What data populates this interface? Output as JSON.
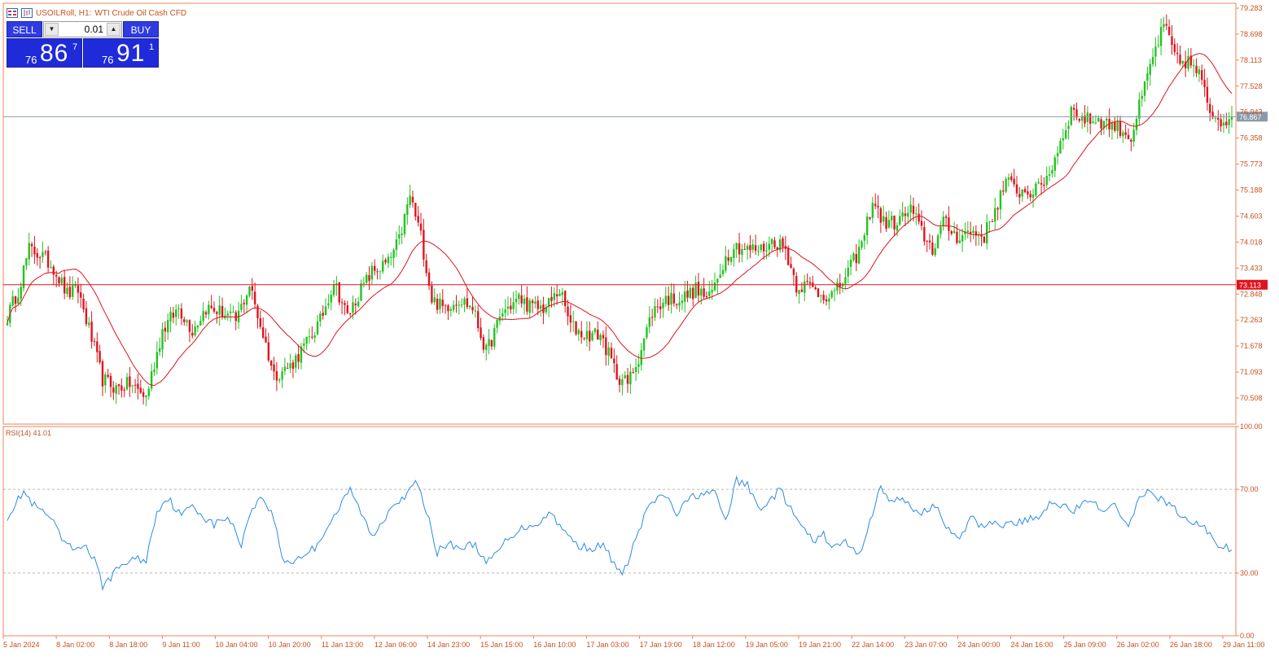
{
  "header": {
    "symbol_timeframe": "USOILRoll, H1:",
    "description": "WTI Crude Oil Cash CFD"
  },
  "trade_panel": {
    "sell_label": "SELL",
    "buy_label": "BUY",
    "lot_value": "0.01",
    "sell_price": {
      "small": "76",
      "big": "86",
      "sup": "7"
    },
    "buy_price": {
      "small": "76",
      "big": "91",
      "sup": "1"
    }
  },
  "colors": {
    "bull": "#22c322",
    "bear": "#e0141e",
    "ma": "#e0141e",
    "rsi_line": "#2b8be6",
    "axis_text": "#c8501c",
    "frame": "#e8875a",
    "bid_line": "#8a9aaa",
    "hline": "#e0141e"
  },
  "chart_data": [
    {
      "type": "candlestick",
      "title": "USOILRoll, H1: WTI Crude Oil Cash CFD",
      "ylim": [
        70.0,
        79.4
      ],
      "y_ticks": [
        "79.283",
        "78.698",
        "78.113",
        "77.528",
        "76.943",
        "76.358",
        "75.773",
        "75.188",
        "74.603",
        "74.018",
        "73.433",
        "72.848",
        "72.263",
        "71.678",
        "71.093",
        "70.508"
      ],
      "x_ticks": [
        "5 Jan 2024",
        "8 Jan 02:00",
        "8 Jan 18:00",
        "9 Jan 11:00",
        "10 Jan 04:00",
        "10 Jan 20:00",
        "11 Jan 13:00",
        "12 Jan 06:00",
        "14 Jan 23:00",
        "15 Jan 15:00",
        "16 Jan 10:00",
        "17 Jan 03:00",
        "17 Jan 19:00",
        "18 Jan 12:00",
        "19 Jan 05:00",
        "19 Jan 21:00",
        "22 Jan 14:00",
        "23 Jan 07:00",
        "24 Jan 00:00",
        "24 Jan 16:00",
        "25 Jan 09:00",
        "26 Jan 02:00",
        "26 Jan 18:00",
        "29 Jan 11:00"
      ],
      "close_anchors": [
        [
          0,
          72.4
        ],
        [
          4,
          73.0
        ],
        [
          8,
          73.9
        ],
        [
          12,
          73.8
        ],
        [
          17,
          73.5
        ],
        [
          22,
          72.9
        ],
        [
          26,
          73.0
        ],
        [
          31,
          71.9
        ],
        [
          35,
          71.0
        ],
        [
          40,
          70.8
        ],
        [
          45,
          70.9
        ],
        [
          51,
          70.6
        ],
        [
          57,
          72.1
        ],
        [
          63,
          72.6
        ],
        [
          68,
          72.1
        ],
        [
          73,
          72.6
        ],
        [
          79,
          72.5
        ],
        [
          84,
          72.3
        ],
        [
          89,
          73.1
        ],
        [
          94,
          72.0
        ],
        [
          98,
          71.1
        ],
        [
          104,
          71.3
        ],
        [
          110,
          71.8
        ],
        [
          115,
          72.3
        ],
        [
          120,
          73.2
        ],
        [
          125,
          72.4
        ],
        [
          129,
          72.9
        ],
        [
          134,
          73.4
        ],
        [
          140,
          73.6
        ],
        [
          144,
          74.1
        ],
        [
          148,
          75.1
        ],
        [
          152,
          74.2
        ],
        [
          156,
          72.8
        ],
        [
          160,
          72.6
        ],
        [
          166,
          72.8
        ],
        [
          171,
          72.6
        ],
        [
          176,
          71.6
        ],
        [
          182,
          72.5
        ],
        [
          188,
          72.8
        ],
        [
          193,
          72.6
        ],
        [
          198,
          72.6
        ],
        [
          203,
          73.0
        ],
        [
          207,
          72.2
        ],
        [
          212,
          72.0
        ],
        [
          218,
          72.0
        ],
        [
          224,
          71.1
        ],
        [
          228,
          70.9
        ],
        [
          232,
          71.5
        ],
        [
          237,
          72.5
        ],
        [
          242,
          72.8
        ],
        [
          248,
          72.8
        ],
        [
          253,
          73.0
        ],
        [
          258,
          72.8
        ],
        [
          263,
          73.6
        ],
        [
          267,
          74.0
        ],
        [
          272,
          73.9
        ],
        [
          277,
          73.9
        ],
        [
          282,
          74.1
        ],
        [
          286,
          73.9
        ],
        [
          290,
          73.1
        ],
        [
          294,
          73.1
        ],
        [
          299,
          72.9
        ],
        [
          304,
          72.9
        ],
        [
          309,
          73.4
        ],
        [
          314,
          74.0
        ],
        [
          318,
          75.0
        ],
        [
          322,
          74.5
        ],
        [
          327,
          74.5
        ],
        [
          332,
          74.8
        ],
        [
          336,
          74.3
        ],
        [
          340,
          73.9
        ],
        [
          344,
          74.5
        ],
        [
          349,
          74.2
        ],
        [
          354,
          74.3
        ],
        [
          359,
          74.2
        ],
        [
          363,
          74.8
        ],
        [
          367,
          75.4
        ],
        [
          372,
          75.2
        ],
        [
          378,
          75.2
        ],
        [
          383,
          75.6
        ],
        [
          387,
          76.3
        ],
        [
          391,
          77.0
        ],
        [
          396,
          76.8
        ],
        [
          401,
          76.8
        ],
        [
          405,
          76.7
        ],
        [
          409,
          76.6
        ],
        [
          413,
          76.4
        ],
        [
          417,
          77.3
        ],
        [
          421,
          78.2
        ],
        [
          425,
          78.9
        ],
        [
          430,
          78.1
        ],
        [
          434,
          78.1
        ],
        [
          438,
          77.8
        ],
        [
          442,
          77.0
        ],
        [
          446,
          76.8
        ],
        [
          450,
          76.87
        ]
      ],
      "moving_average": {
        "name": "MA",
        "type": "line"
      },
      "horizontal_lines": [
        {
          "label": "76.867",
          "value": 76.867,
          "kind": "bid"
        },
        {
          "label": "73.113",
          "value": 73.113,
          "kind": "level"
        }
      ],
      "grid": false
    },
    {
      "type": "line",
      "title": "RSI(14) 41.01",
      "label": "RSI(14) 41.01",
      "ylim": [
        0,
        100
      ],
      "y_ticks": [
        "100.00",
        "70.00",
        "30.00",
        "0.00"
      ],
      "levels": [
        70,
        30
      ],
      "current": 41.01,
      "anchors": [
        [
          0,
          57
        ],
        [
          3,
          63
        ],
        [
          6,
          69
        ],
        [
          9,
          63
        ],
        [
          12,
          60
        ],
        [
          16,
          56
        ],
        [
          20,
          46
        ],
        [
          24,
          41
        ],
        [
          28,
          44
        ],
        [
          32,
          36
        ],
        [
          35,
          24
        ],
        [
          38,
          28
        ],
        [
          42,
          34
        ],
        [
          47,
          37
        ],
        [
          51,
          36
        ],
        [
          55,
          60
        ],
        [
          59,
          66
        ],
        [
          64,
          57
        ],
        [
          68,
          63
        ],
        [
          72,
          57
        ],
        [
          76,
          53
        ],
        [
          81,
          57
        ],
        [
          86,
          44
        ],
        [
          90,
          62
        ],
        [
          94,
          66
        ],
        [
          98,
          56
        ],
        [
          101,
          37
        ],
        [
          104,
          35
        ],
        [
          108,
          38
        ],
        [
          113,
          42
        ],
        [
          118,
          53
        ],
        [
          122,
          61
        ],
        [
          126,
          70
        ],
        [
          130,
          59
        ],
        [
          134,
          47
        ],
        [
          138,
          55
        ],
        [
          142,
          64
        ],
        [
          147,
          67
        ],
        [
          150,
          74
        ],
        [
          154,
          60
        ],
        [
          158,
          40
        ],
        [
          162,
          44
        ],
        [
          167,
          42
        ],
        [
          172,
          44
        ],
        [
          176,
          34
        ],
        [
          180,
          40
        ],
        [
          185,
          48
        ],
        [
          190,
          52
        ],
        [
          195,
          54
        ],
        [
          200,
          59
        ],
        [
          205,
          49
        ],
        [
          210,
          43
        ],
        [
          215,
          42
        ],
        [
          219,
          43
        ],
        [
          222,
          37
        ],
        [
          226,
          28
        ],
        [
          230,
          43
        ],
        [
          236,
          63
        ],
        [
          242,
          67
        ],
        [
          246,
          58
        ],
        [
          251,
          66
        ],
        [
          255,
          68
        ],
        [
          260,
          68
        ],
        [
          264,
          55
        ],
        [
          268,
          74
        ],
        [
          272,
          72
        ],
        [
          276,
          61
        ],
        [
          280,
          64
        ],
        [
          284,
          70
        ],
        [
          288,
          60
        ],
        [
          292,
          52
        ],
        [
          296,
          45
        ],
        [
          300,
          48
        ],
        [
          304,
          42
        ],
        [
          308,
          45
        ],
        [
          313,
          38
        ],
        [
          317,
          55
        ],
        [
          321,
          71
        ],
        [
          325,
          64
        ],
        [
          330,
          65
        ],
        [
          334,
          59
        ],
        [
          338,
          60
        ],
        [
          342,
          62
        ],
        [
          346,
          50
        ],
        [
          350,
          45
        ],
        [
          354,
          57
        ],
        [
          358,
          52
        ],
        [
          362,
          55
        ],
        [
          366,
          53
        ],
        [
          370,
          54
        ],
        [
          375,
          55
        ],
        [
          380,
          58
        ],
        [
          384,
          65
        ],
        [
          388,
          62
        ],
        [
          392,
          60
        ],
        [
          396,
          63
        ],
        [
          400,
          63
        ],
        [
          404,
          60
        ],
        [
          408,
          62
        ],
        [
          412,
          51
        ],
        [
          416,
          65
        ],
        [
          420,
          70
        ],
        [
          424,
          65
        ],
        [
          428,
          62
        ],
        [
          432,
          56
        ],
        [
          436,
          54
        ],
        [
          440,
          52
        ],
        [
          444,
          44
        ],
        [
          448,
          42
        ],
        [
          450,
          41.01
        ]
      ]
    }
  ]
}
